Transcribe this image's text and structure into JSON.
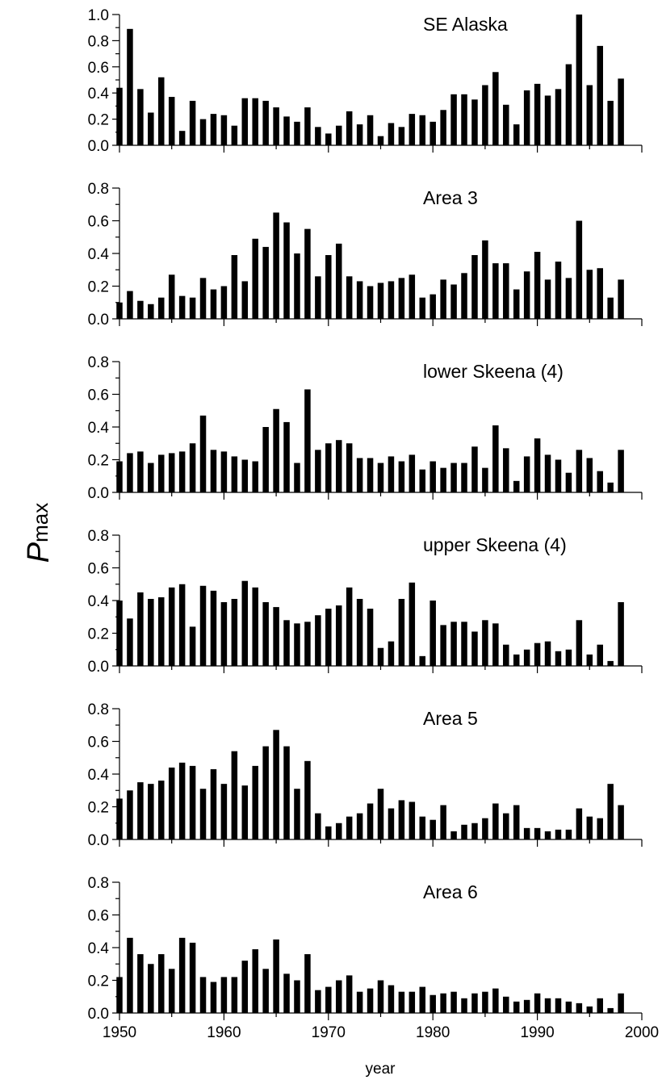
{
  "chart_data": {
    "type": "bar",
    "ylabel_main": "P",
    "ylabel_sub": "max",
    "xlabel": "year",
    "xlim": [
      1950,
      2000
    ],
    "xticks": [
      1950,
      1960,
      1970,
      1980,
      1990,
      2000
    ],
    "x": [
      1950,
      1951,
      1952,
      1953,
      1954,
      1955,
      1956,
      1957,
      1958,
      1959,
      1960,
      1961,
      1962,
      1963,
      1964,
      1965,
      1966,
      1967,
      1968,
      1969,
      1970,
      1971,
      1972,
      1973,
      1974,
      1975,
      1976,
      1977,
      1978,
      1979,
      1980,
      1981,
      1982,
      1983,
      1984,
      1985,
      1986,
      1987,
      1988,
      1989,
      1990,
      1991,
      1992,
      1993,
      1994,
      1995,
      1996,
      1997,
      1998
    ],
    "panels": [
      {
        "name": "SE Alaska",
        "ylim": [
          0,
          1.0
        ],
        "yticks": [
          "0.0",
          "0.2",
          "0.4",
          "0.6",
          "0.8",
          "1.0"
        ],
        "values": [
          0.44,
          0.89,
          0.43,
          0.25,
          0.52,
          0.37,
          0.11,
          0.34,
          0.2,
          0.24,
          0.23,
          0.15,
          0.36,
          0.36,
          0.34,
          0.29,
          0.22,
          0.18,
          0.29,
          0.14,
          0.09,
          0.15,
          0.26,
          0.16,
          0.23,
          0.07,
          0.17,
          0.14,
          0.24,
          0.23,
          0.18,
          0.27,
          0.39,
          0.39,
          0.35,
          0.46,
          0.56,
          0.31,
          0.16,
          0.42,
          0.47,
          0.38,
          0.43,
          0.62,
          1.0,
          0.46,
          0.76,
          0.34,
          0.51
        ]
      },
      {
        "name": "Area 3",
        "ylim": [
          0,
          0.8
        ],
        "yticks": [
          "0.0",
          "0.2",
          "0.4",
          "0.6",
          "0.8"
        ],
        "values": [
          0.1,
          0.17,
          0.11,
          0.09,
          0.13,
          0.27,
          0.14,
          0.13,
          0.25,
          0.18,
          0.2,
          0.39,
          0.23,
          0.49,
          0.44,
          0.65,
          0.59,
          0.4,
          0.55,
          0.26,
          0.39,
          0.46,
          0.26,
          0.23,
          0.2,
          0.22,
          0.23,
          0.25,
          0.27,
          0.13,
          0.15,
          0.24,
          0.21,
          0.28,
          0.39,
          0.48,
          0.34,
          0.34,
          0.18,
          0.29,
          0.41,
          0.24,
          0.35,
          0.25,
          0.6,
          0.3,
          0.31,
          0.13,
          0.24
        ]
      },
      {
        "name": "lower Skeena (4)",
        "ylim": [
          0,
          0.8
        ],
        "yticks": [
          "0.0",
          "0.2",
          "0.4",
          "0.6",
          "0.8"
        ],
        "values": [
          0.19,
          0.24,
          0.25,
          0.18,
          0.23,
          0.24,
          0.25,
          0.3,
          0.47,
          0.26,
          0.25,
          0.22,
          0.2,
          0.19,
          0.4,
          0.51,
          0.43,
          0.18,
          0.63,
          0.26,
          0.3,
          0.32,
          0.3,
          0.21,
          0.21,
          0.18,
          0.22,
          0.19,
          0.23,
          0.14,
          0.19,
          0.15,
          0.18,
          0.18,
          0.28,
          0.15,
          0.41,
          0.27,
          0.07,
          0.22,
          0.33,
          0.23,
          0.2,
          0.12,
          0.26,
          0.21,
          0.13,
          0.06,
          0.26
        ]
      },
      {
        "name": "upper Skeena (4)",
        "ylim": [
          0,
          0.8
        ],
        "yticks": [
          "0.0",
          "0.2",
          "0.4",
          "0.6",
          "0.8"
        ],
        "values": [
          0.4,
          0.29,
          0.45,
          0.41,
          0.42,
          0.48,
          0.5,
          0.24,
          0.49,
          0.46,
          0.39,
          0.41,
          0.52,
          0.48,
          0.39,
          0.36,
          0.28,
          0.26,
          0.27,
          0.31,
          0.35,
          0.37,
          0.48,
          0.41,
          0.35,
          0.11,
          0.15,
          0.41,
          0.51,
          0.06,
          0.4,
          0.25,
          0.27,
          0.27,
          0.21,
          0.28,
          0.26,
          0.13,
          0.07,
          0.1,
          0.14,
          0.15,
          0.09,
          0.1,
          0.28,
          0.07,
          0.13,
          0.03,
          0.39
        ]
      },
      {
        "name": "Area 5",
        "ylim": [
          0,
          0.8
        ],
        "yticks": [
          "0.0",
          "0.2",
          "0.4",
          "0.6",
          "0.8"
        ],
        "values": [
          0.25,
          0.3,
          0.35,
          0.34,
          0.36,
          0.44,
          0.47,
          0.45,
          0.31,
          0.43,
          0.34,
          0.54,
          0.33,
          0.45,
          0.57,
          0.67,
          0.57,
          0.31,
          0.48,
          0.16,
          0.08,
          0.1,
          0.14,
          0.16,
          0.22,
          0.31,
          0.19,
          0.24,
          0.23,
          0.14,
          0.12,
          0.21,
          0.05,
          0.09,
          0.1,
          0.13,
          0.22,
          0.16,
          0.21,
          0.07,
          0.07,
          0.05,
          0.06,
          0.06,
          0.19,
          0.14,
          0.13,
          0.34,
          0.21
        ]
      },
      {
        "name": "Area 6",
        "ylim": [
          0,
          0.8
        ],
        "yticks": [
          "0.0",
          "0.2",
          "0.4",
          "0.6",
          "0.8"
        ],
        "values": [
          0.22,
          0.46,
          0.36,
          0.3,
          0.36,
          0.27,
          0.46,
          0.43,
          0.22,
          0.19,
          0.22,
          0.22,
          0.32,
          0.39,
          0.27,
          0.45,
          0.24,
          0.2,
          0.36,
          0.14,
          0.16,
          0.2,
          0.23,
          0.13,
          0.15,
          0.2,
          0.17,
          0.13,
          0.13,
          0.16,
          0.11,
          0.12,
          0.13,
          0.09,
          0.12,
          0.13,
          0.15,
          0.1,
          0.07,
          0.08,
          0.12,
          0.09,
          0.09,
          0.07,
          0.06,
          0.04,
          0.09,
          0.03,
          0.12
        ]
      }
    ]
  }
}
